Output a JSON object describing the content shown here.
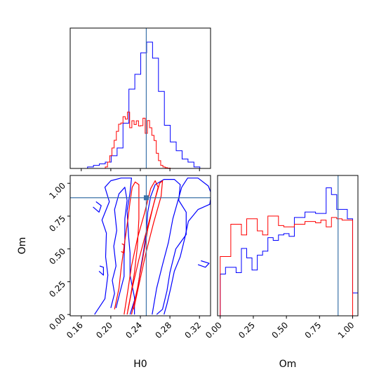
{
  "chart_data": {
    "type": "corner",
    "parameters": [
      "H0",
      "Om"
    ],
    "truth": {
      "H0": 0.248,
      "Om": 0.89
    },
    "colors": {
      "blue": "#0000ff",
      "red": "#ff0000",
      "truth": "#3b73a8"
    },
    "panels": [
      {
        "name": "h0-marginal",
        "type": "step-histogram",
        "xlim": [
          0.145,
          0.335
        ],
        "x_ticks": [
          0.16,
          0.2,
          0.24,
          0.28,
          0.32
        ],
        "ylim": [
          0,
          1
        ],
        "bin_edges": [
          0.1685,
          0.1765,
          0.1845,
          0.1925,
          0.2005,
          0.2085,
          0.2165,
          0.2245,
          0.2325,
          0.2405,
          0.2485,
          0.2565,
          0.2645,
          0.2725,
          0.2805,
          0.2885,
          0.2965,
          0.3045,
          0.3125,
          0.3205
        ],
        "series": [
          {
            "color": "blue",
            "values": [
              0.012,
              0.024,
              0.036,
              0.05,
              0.101,
              0.162,
              0.358,
              0.628,
              0.745,
              0.915,
              1.0,
              0.873,
              0.61,
              0.342,
              0.21,
              0.14,
              0.074,
              0.05,
              0.012
            ]
          }
        ]
      },
      {
        "name": "h0-marginal-red",
        "type": "step-histogram",
        "bin_edges": [
          0.1925,
          0.1955,
          0.1985,
          0.2015,
          0.2045,
          0.2075,
          0.2105,
          0.2135,
          0.2165,
          0.2195,
          0.2225,
          0.2255,
          0.2285,
          0.2315,
          0.2345,
          0.2375,
          0.2405,
          0.2435,
          0.2465,
          0.2495,
          0.2525,
          0.2555,
          0.2585,
          0.2615,
          0.2645,
          0.2675,
          0.2705,
          0.2735,
          0.2765,
          0.2805
        ],
        "series": [
          {
            "color": "red",
            "values": [
              0.012,
              0.05,
              0.101,
              0.162,
              0.223,
              0.294,
              0.35,
              0.36,
              0.41,
              0.39,
              0.446,
              0.322,
              0.378,
              0.348,
              0.377,
              0.336,
              0.339,
              0.398,
              0.278,
              0.379,
              0.322,
              0.262,
              0.221,
              0.12,
              0.062,
              0.024,
              0.012,
              0.006,
              0.003
            ]
          }
        ]
      },
      {
        "name": "om-marginal",
        "type": "step-histogram",
        "xlim": [
          -0.02,
          1.04
        ],
        "x_ticks": [
          0.0,
          0.25,
          0.5,
          0.75,
          1.0
        ],
        "bin_edges": [
          0.0,
          0.04,
          0.08,
          0.12,
          0.16,
          0.2,
          0.24,
          0.28,
          0.32,
          0.36,
          0.4,
          0.44,
          0.48,
          0.52,
          0.56,
          0.6,
          0.64,
          0.68,
          0.72,
          0.76,
          0.8,
          0.84,
          0.88,
          0.92,
          0.96,
          1.0,
          1.04
        ],
        "series": [
          {
            "color": "blue",
            "values": [
              0.31,
              0.36,
              0.36,
              0.32,
              0.5,
              0.43,
              0.34,
              0.45,
              0.48,
              0.58,
              0.56,
              0.6,
              0.61,
              0.59,
              0.73,
              0.73,
              0.77,
              0.77,
              0.76,
              0.76,
              0.95,
              0.9,
              0.79,
              0.79,
              0.72,
              0.17
            ]
          },
          {
            "color": "red",
            "values": [
              0.44,
              0.44,
              0.68,
              0.68,
              0.6,
              0.72,
              0.72,
              0.63,
              0.6,
              0.74,
              0.74,
              0.67,
              0.66,
              0.66,
              0.68,
              0.68,
              0.7,
              0.7,
              0.69,
              0.71,
              0.66,
              0.73,
              0.72,
              0.71,
              0.71,
              0.0
            ]
          }
        ]
      },
      {
        "name": "joint-contours",
        "type": "contour",
        "xlim": [
          0.145,
          0.335
        ],
        "ylim": [
          -0.01,
          1.06
        ],
        "x_ticks": [
          0.16,
          0.2,
          0.24,
          0.28,
          0.32
        ],
        "y_ticks": [
          0.0,
          0.25,
          0.5,
          0.75,
          1.0
        ],
        "xlabel": "H0",
        "ylabel": "Om",
        "contours": [
          {
            "color": "blue",
            "points": [
              [
                0.178,
                0.0
              ],
              [
                0.192,
                0.12
              ],
              [
                0.196,
                0.3
              ],
              [
                0.193,
                0.44
              ],
              [
                0.194,
                0.62
              ],
              [
                0.188,
                0.72
              ],
              [
                0.198,
                0.86
              ],
              [
                0.192,
                0.97
              ],
              [
                0.2,
                1.02
              ],
              [
                0.214,
                1.04
              ],
              [
                0.228,
                1.04
              ],
              [
                0.226,
                0.93
              ],
              [
                0.222,
                0.79
              ],
              [
                0.224,
                0.6
              ],
              [
                0.226,
                0.47
              ],
              [
                0.226,
                0.3
              ],
              [
                0.232,
                0.13
              ],
              [
                0.232,
                0.0
              ]
            ]
          },
          {
            "color": "blue",
            "points": [
              [
                0.226,
                0.0
              ],
              [
                0.236,
                0.18
              ],
              [
                0.24,
                0.34
              ],
              [
                0.244,
                0.47
              ],
              [
                0.248,
                0.62
              ],
              [
                0.25,
                0.78
              ],
              [
                0.254,
                0.9
              ],
              [
                0.26,
                0.99
              ],
              [
                0.272,
                1.03
              ],
              [
                0.286,
                1.03
              ],
              [
                0.294,
                0.99
              ],
              [
                0.292,
                0.87
              ],
              [
                0.302,
                0.78
              ],
              [
                0.302,
                0.61
              ],
              [
                0.288,
                0.5
              ],
              [
                0.28,
                0.32
              ],
              [
                0.276,
                0.18
              ],
              [
                0.27,
                0.04
              ],
              [
                0.262,
                0.0
              ]
            ]
          },
          {
            "color": "blue",
            "points": [
              [
                0.256,
                0.0
              ],
              [
                0.262,
                0.2
              ],
              [
                0.27,
                0.38
              ],
              [
                0.278,
                0.55
              ],
              [
                0.284,
                0.73
              ],
              [
                0.29,
                0.85
              ],
              [
                0.296,
                0.97
              ],
              [
                0.304,
                1.04
              ],
              [
                0.318,
                1.04
              ],
              [
                0.332,
                0.98
              ],
              [
                0.336,
                0.92
              ],
              [
                0.334,
                0.84
              ],
              [
                0.318,
                0.8
              ],
              [
                0.305,
                0.71
              ],
              [
                0.3,
                0.58
              ],
              [
                0.294,
                0.44
              ],
              [
                0.286,
                0.33
              ],
              [
                0.281,
                0.2
              ],
              [
                0.276,
                0.08
              ],
              [
                0.272,
                0.0
              ]
            ]
          },
          {
            "color": "blue",
            "points": [
              [
                0.2,
                0.05
              ],
              [
                0.205,
                0.16
              ],
              [
                0.202,
                0.26
              ],
              [
                0.207,
                0.37
              ],
              [
                0.204,
                0.52
              ],
              [
                0.208,
                0.64
              ],
              [
                0.205,
                0.8
              ],
              [
                0.211,
                0.92
              ],
              [
                0.219,
                0.97
              ],
              [
                0.222,
                0.87
              ],
              [
                0.219,
                0.73
              ],
              [
                0.219,
                0.57
              ],
              [
                0.218,
                0.43
              ],
              [
                0.218,
                0.29
              ],
              [
                0.212,
                0.16
              ],
              [
                0.207,
                0.05
              ]
            ]
          },
          {
            "color": "blue",
            "points": [
              [
                0.176,
                0.82
              ],
              [
                0.184,
                0.78
              ],
              [
                0.187,
                0.83
              ],
              [
                0.18,
                0.86
              ]
            ]
          },
          {
            "color": "blue",
            "points": [
              [
                0.184,
                0.33
              ],
              [
                0.19,
                0.3
              ],
              [
                0.19,
                0.36
              ],
              [
                0.185,
                0.37
              ]
            ]
          },
          {
            "color": "blue",
            "points": [
              [
                0.318,
                0.38
              ],
              [
                0.328,
                0.36
              ],
              [
                0.333,
                0.39
              ],
              [
                0.322,
                0.41
              ]
            ]
          },
          {
            "color": "red",
            "points": [
              [
                0.205,
                0.04
              ],
              [
                0.211,
                0.2
              ],
              [
                0.214,
                0.35
              ],
              [
                0.218,
                0.52
              ],
              [
                0.223,
                0.72
              ],
              [
                0.226,
                0.86
              ],
              [
                0.229,
                0.97
              ],
              [
                0.233,
                1.01
              ],
              [
                0.238,
                0.99
              ],
              [
                0.238,
                0.9
              ],
              [
                0.238,
                0.73
              ],
              [
                0.236,
                0.52
              ],
              [
                0.232,
                0.32
              ],
              [
                0.227,
                0.15
              ],
              [
                0.223,
                0.03
              ]
            ]
          },
          {
            "color": "red",
            "points": [
              [
                0.218,
                0.0
              ],
              [
                0.223,
                0.18
              ],
              [
                0.228,
                0.37
              ],
              [
                0.236,
                0.58
              ],
              [
                0.246,
                0.78
              ],
              [
                0.254,
                0.96
              ],
              [
                0.26,
                1.02
              ],
              [
                0.264,
                0.97
              ],
              [
                0.258,
                0.84
              ],
              [
                0.25,
                0.65
              ],
              [
                0.243,
                0.42
              ],
              [
                0.236,
                0.2
              ],
              [
                0.228,
                0.0
              ]
            ]
          },
          {
            "color": "red",
            "points": [
              [
                0.222,
                0.0
              ],
              [
                0.229,
                0.2
              ],
              [
                0.238,
                0.42
              ],
              [
                0.248,
                0.63
              ],
              [
                0.258,
                0.84
              ],
              [
                0.266,
                1.0
              ],
              [
                0.27,
                1.02
              ],
              [
                0.268,
                0.9
              ],
              [
                0.258,
                0.7
              ],
              [
                0.248,
                0.48
              ],
              [
                0.239,
                0.25
              ],
              [
                0.231,
                0.04
              ]
            ]
          },
          {
            "color": "red",
            "points": [
              [
                0.214,
                0.48
              ],
              [
                0.218,
                0.47
              ],
              [
                0.218,
                0.53
              ],
              [
                0.215,
                0.54
              ]
            ]
          }
        ]
      }
    ]
  }
}
